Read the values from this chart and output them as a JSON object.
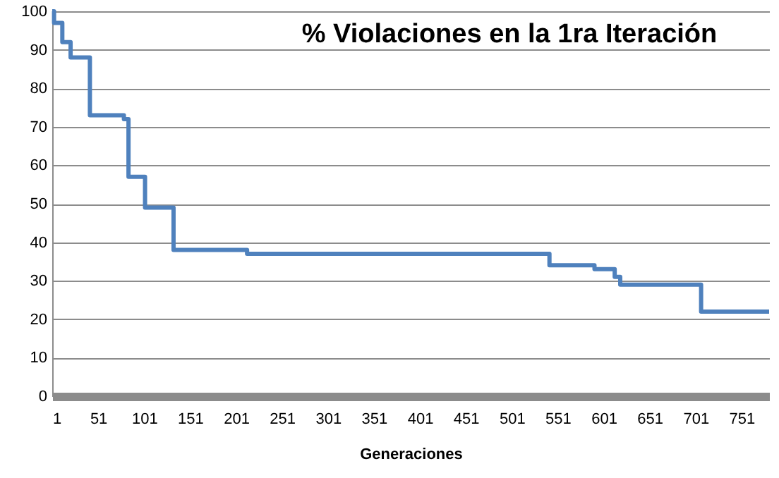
{
  "chart_data": {
    "type": "step",
    "title": "% Violaciones en la 1ra Iteración",
    "xlabel": "Generaciones",
    "x": [
      1,
      3,
      12,
      21,
      42,
      79,
      84,
      102,
      133,
      213,
      542,
      591,
      613,
      619,
      707,
      781
    ],
    "series": [
      {
        "color": "#4f81bd",
        "values": [
          100,
          97,
          92,
          88,
          73,
          72,
          57,
          49,
          38,
          37,
          34,
          33,
          31,
          29,
          22,
          22
        ]
      }
    ],
    "xlim": [
      1,
      781
    ],
    "xticks": [
      1,
      51,
      101,
      151,
      201,
      251,
      301,
      351,
      401,
      451,
      501,
      551,
      601,
      651,
      701,
      751
    ],
    "ylim": [
      0,
      100
    ],
    "yticks": [
      0,
      10,
      20,
      30,
      40,
      50,
      60,
      70,
      80,
      90,
      100
    ],
    "grid": "y",
    "legend": false,
    "marker": "none",
    "line_style": "solid"
  }
}
